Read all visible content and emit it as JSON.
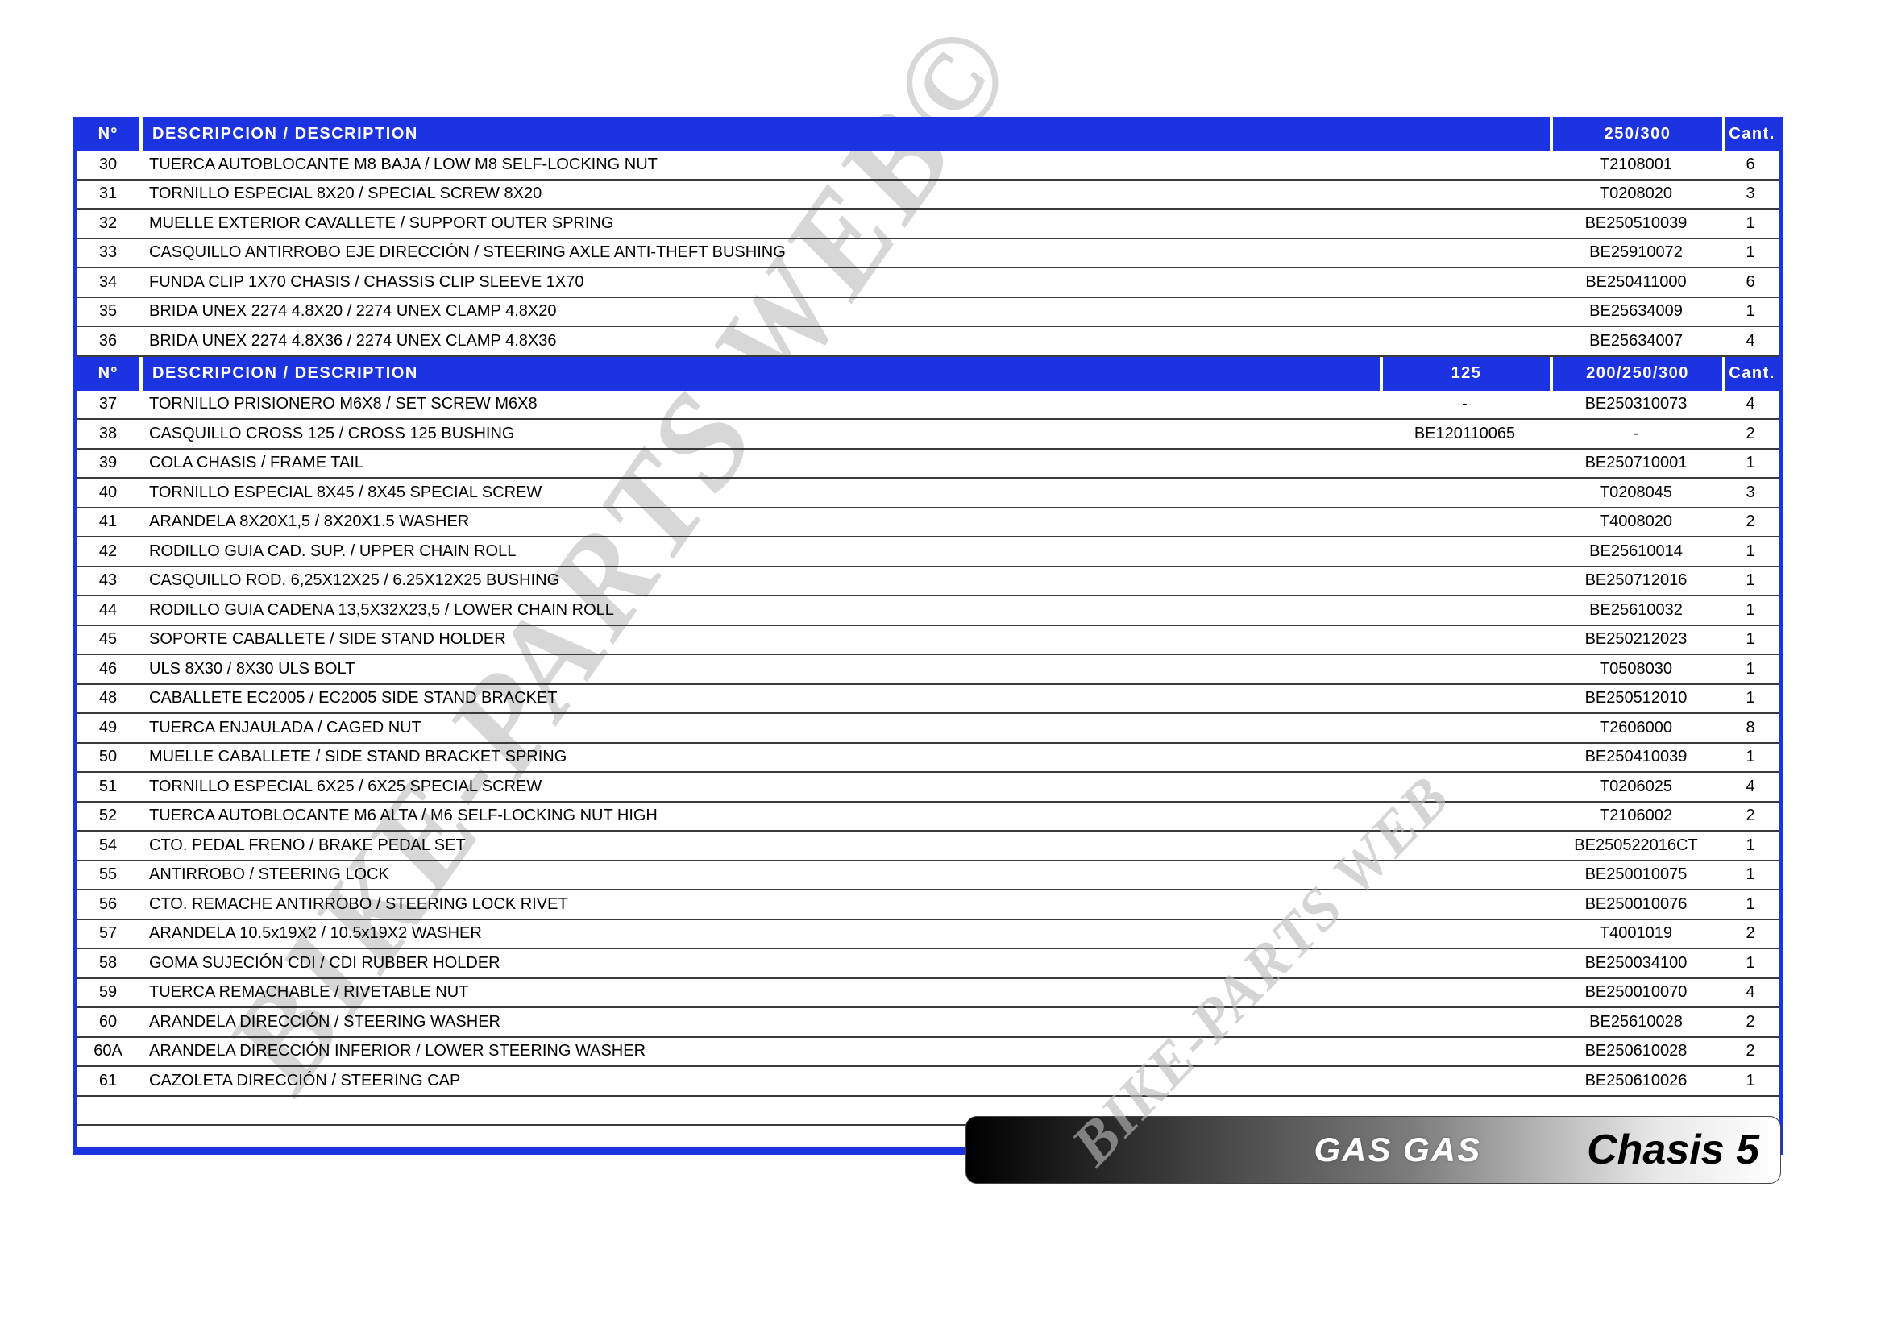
{
  "colors": {
    "accent_blue": "#1b33e0",
    "row_separator": "#3a3a3a",
    "watermark_gray": "#bcbcbc",
    "footer_gradient_start": "#000000",
    "footer_gradient_end": "#ffffff"
  },
  "watermarks": {
    "large": "BIKE-PARTS WEB©",
    "small": "BIKE-PARTS WEB"
  },
  "footer": {
    "brand": "GAS GAS",
    "page_label": "Chasis 5"
  },
  "table": {
    "sections": [
      {
        "header": {
          "no": "Nº",
          "description": "DESCRIPCION / DESCRIPTION",
          "columns": [
            "250/300"
          ],
          "qty": "Cant."
        },
        "rows": [
          {
            "no": "30",
            "description": "TUERCA AUTOBLOCANTE M8 BAJA / LOW M8 SELF-LOCKING NUT",
            "cols": [
              "T2108001"
            ],
            "qty": "6"
          },
          {
            "no": "31",
            "description": "TORNILLO ESPECIAL 8X20 / SPECIAL SCREW 8X20",
            "cols": [
              "T0208020"
            ],
            "qty": "3"
          },
          {
            "no": "32",
            "description": "MUELLE EXTERIOR CAVALLETE / SUPPORT OUTER SPRING",
            "cols": [
              "BE250510039"
            ],
            "qty": "1"
          },
          {
            "no": "33",
            "description": "CASQUILLO ANTIRROBO EJE DIRECCIÓN / STEERING AXLE ANTI-THEFT BUSHING",
            "cols": [
              "BE25910072"
            ],
            "qty": "1"
          },
          {
            "no": "34",
            "description": "FUNDA CLIP 1X70 CHASIS / CHASSIS CLIP SLEEVE 1X70",
            "cols": [
              "BE250411000"
            ],
            "qty": "6"
          },
          {
            "no": "35",
            "description": "BRIDA UNEX 2274 4.8X20 / 2274 UNEX CLAMP 4.8X20",
            "cols": [
              "BE25634009"
            ],
            "qty": "1"
          },
          {
            "no": "36",
            "description": "BRIDA UNEX 2274 4.8X36 / 2274 UNEX CLAMP 4.8X36",
            "cols": [
              "BE25634007"
            ],
            "qty": "4"
          }
        ]
      },
      {
        "header": {
          "no": "Nº",
          "description": "DESCRIPCION / DESCRIPTION",
          "columns": [
            "125",
            "200/250/300"
          ],
          "qty": "Cant."
        },
        "rows": [
          {
            "no": "37",
            "description": "TORNILLO PRISIONERO M6X8 / SET SCREW M6X8",
            "cols": [
              "-",
              "BE250310073"
            ],
            "qty": "4"
          },
          {
            "no": "38",
            "description": "CASQUILLO CROSS 125 / CROSS 125 BUSHING",
            "cols": [
              "BE120110065",
              "-"
            ],
            "qty": "2"
          },
          {
            "no": "39",
            "description": "COLA CHASIS / FRAME TAIL",
            "cols": [
              "",
              "BE250710001"
            ],
            "qty": "1"
          },
          {
            "no": "40",
            "description": "TORNILLO ESPECIAL 8X45 / 8X45 SPECIAL SCREW",
            "cols": [
              "",
              "T0208045"
            ],
            "qty": "3"
          },
          {
            "no": "41",
            "description": "ARANDELA 8X20X1,5 / 8X20X1.5 WASHER",
            "cols": [
              "",
              "T4008020"
            ],
            "qty": "2"
          },
          {
            "no": "42",
            "description": "RODILLO GUIA CAD. SUP. / UPPER CHAIN ROLL",
            "cols": [
              "",
              "BE25610014"
            ],
            "qty": "1"
          },
          {
            "no": "43",
            "description": "CASQUILLO ROD. 6,25X12X25 / 6.25X12X25 BUSHING",
            "cols": [
              "",
              "BE250712016"
            ],
            "qty": "1"
          },
          {
            "no": "44",
            "description": "RODILLO GUIA CADENA 13,5X32X23,5 / LOWER CHAIN ROLL",
            "cols": [
              "",
              "BE25610032"
            ],
            "qty": "1"
          },
          {
            "no": "45",
            "description": "SOPORTE CABALLETE / SIDE STAND HOLDER",
            "cols": [
              "",
              "BE250212023"
            ],
            "qty": "1"
          },
          {
            "no": "46",
            "description": "ULS 8X30 / 8X30 ULS BOLT",
            "cols": [
              "",
              "T0508030"
            ],
            "qty": "1"
          },
          {
            "no": "48",
            "description": "CABALLETE EC2005 / EC2005 SIDE STAND BRACKET",
            "cols": [
              "",
              "BE250512010"
            ],
            "qty": "1"
          },
          {
            "no": "49",
            "description": "TUERCA ENJAULADA / CAGED NUT",
            "cols": [
              "",
              "T2606000"
            ],
            "qty": "8"
          },
          {
            "no": "50",
            "description": "MUELLE CABALLETE / SIDE STAND BRACKET SPRING",
            "cols": [
              "",
              "BE250410039"
            ],
            "qty": "1"
          },
          {
            "no": "51",
            "description": "TORNILLO ESPECIAL 6X25 / 6X25 SPECIAL SCREW",
            "cols": [
              "",
              "T0206025"
            ],
            "qty": "4"
          },
          {
            "no": "52",
            "description": "TUERCA AUTOBLOCANTE M6 ALTA / M6 SELF-LOCKING NUT HIGH",
            "cols": [
              "",
              "T2106002"
            ],
            "qty": "2"
          },
          {
            "no": "54",
            "description": "CTO. PEDAL FRENO / BRAKE PEDAL SET",
            "cols": [
              "",
              "BE250522016CT"
            ],
            "qty": "1"
          },
          {
            "no": "55",
            "description": "ANTIRROBO / STEERING LOCK",
            "cols": [
              "",
              "BE250010075"
            ],
            "qty": "1"
          },
          {
            "no": "56",
            "description": "CTO. REMACHE ANTIRROBO / STEERING LOCK RIVET",
            "cols": [
              "",
              "BE250010076"
            ],
            "qty": "1"
          },
          {
            "no": "57",
            "description": "ARANDELA 10.5x19X2 / 10.5x19X2 WASHER",
            "cols": [
              "",
              "T4001019"
            ],
            "qty": "2"
          },
          {
            "no": "58",
            "description": "GOMA SUJECIÓN CDI / CDI RUBBER HOLDER",
            "cols": [
              "",
              "BE250034100"
            ],
            "qty": "1"
          },
          {
            "no": "59",
            "description": "TUERCA REMACHABLE / RIVETABLE NUT",
            "cols": [
              "",
              "BE250010070"
            ],
            "qty": "4"
          },
          {
            "no": "60",
            "description": "ARANDELA DIRECCIÓN / STEERING WASHER",
            "cols": [
              "",
              "BE25610028"
            ],
            "qty": "2"
          },
          {
            "no": "60A",
            "description": "ARANDELA DIRECCIÓN INFERIOR / LOWER STEERING WASHER",
            "cols": [
              "",
              "BE250610028"
            ],
            "qty": "2"
          },
          {
            "no": "61",
            "description": "CAZOLETA DIRECCIÓN / STEERING CAP",
            "cols": [
              "",
              "BE250610026"
            ],
            "qty": "1"
          }
        ]
      }
    ]
  }
}
